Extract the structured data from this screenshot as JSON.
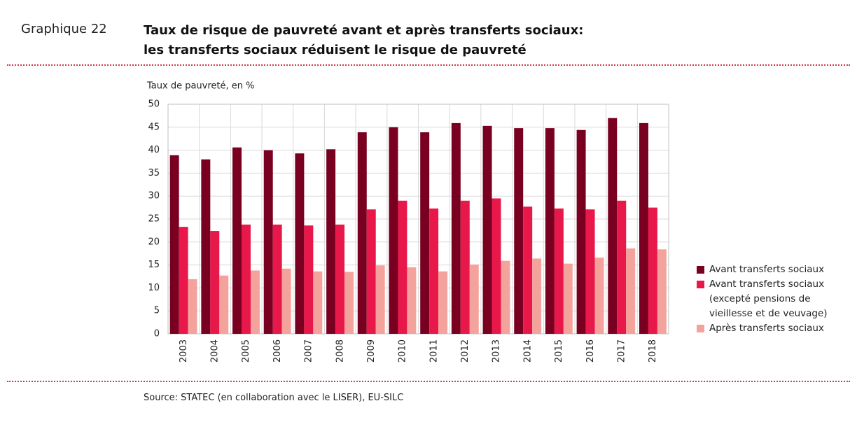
{
  "chart_data": {
    "type": "bar",
    "label": "Graphique 22",
    "title": "Taux de risque de pauvreté avant et après transferts sociaux:",
    "subtitle": "les transferts sociaux réduisent le risque de pauvreté",
    "y_label": "Taux de pauvreté, en %",
    "source": "Source: STATEC (en collaboration avec le LISER), EU-SILC",
    "categories": [
      "2003",
      "2004",
      "2005",
      "2006",
      "2007",
      "2008",
      "2009",
      "2010",
      "2011",
      "2012",
      "2013",
      "2014",
      "2015",
      "2016",
      "2017",
      "2018"
    ],
    "series": [
      {
        "name": "Avant transferts sociaux",
        "color": "#7a0021",
        "values": [
          38.9,
          38.0,
          40.6,
          40.0,
          39.3,
          40.2,
          43.9,
          45.0,
          43.9,
          45.9,
          45.3,
          44.8,
          44.8,
          44.4,
          47.0,
          45.9
        ]
      },
      {
        "name": "Avant transferts sociaux (excepté pensions de vieillesse et de veuvage)",
        "color": "#e8184b",
        "values": [
          23.3,
          22.4,
          23.8,
          23.8,
          23.6,
          23.8,
          27.1,
          29.0,
          27.3,
          29.0,
          29.5,
          27.7,
          27.3,
          27.1,
          29.0,
          27.5
        ]
      },
      {
        "name": "Après transferts sociaux",
        "color": "#f4a39c",
        "values": [
          11.9,
          12.7,
          13.8,
          14.2,
          13.6,
          13.5,
          14.9,
          14.5,
          13.6,
          15.1,
          15.9,
          16.4,
          15.3,
          16.6,
          18.6,
          18.4
        ]
      }
    ],
    "ylim": [
      0,
      50
    ],
    "yticks": [
      0,
      5,
      10,
      15,
      20,
      25,
      30,
      35,
      40,
      45,
      50
    ],
    "grid": true
  }
}
